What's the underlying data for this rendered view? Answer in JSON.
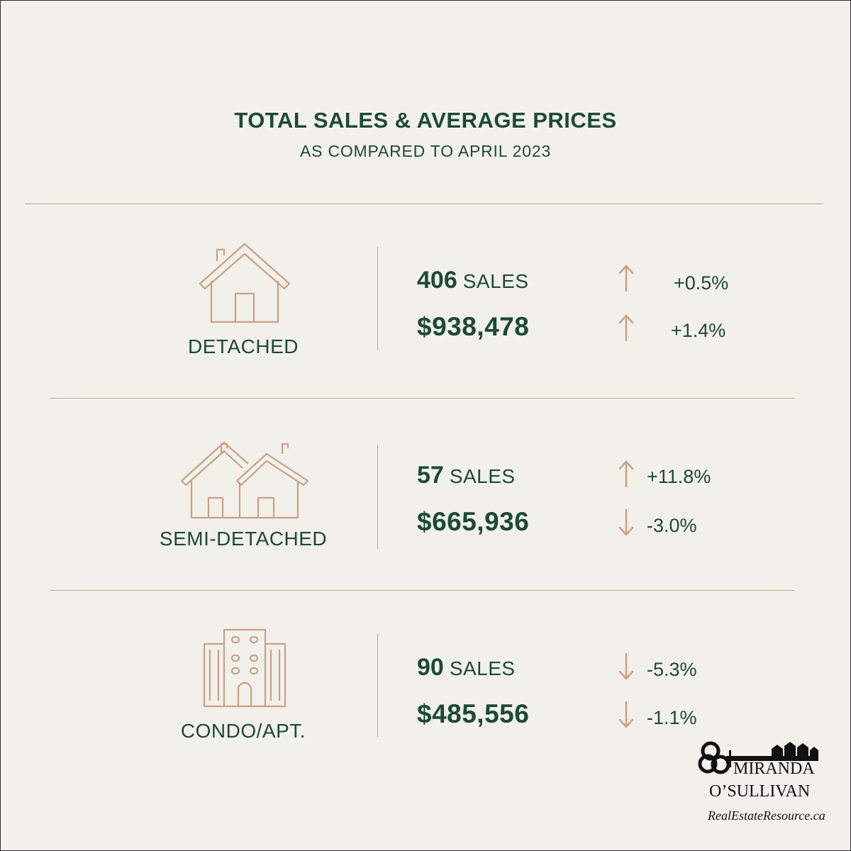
{
  "header": {
    "title": "TOTAL SALES & AVERAGE PRICES",
    "subtitle": "AS COMPARED TO APRIL 2023"
  },
  "colors": {
    "accent_green": "#1c4a34",
    "accent_tan": "#c9a183",
    "background": "#f2f0eb"
  },
  "categories": [
    {
      "label": "DETACHED",
      "icon": "house-icon",
      "sales_count": "406",
      "sales_unit": "SALES",
      "sales_change": "+0.5%",
      "sales_direction": "up",
      "avg_price": "$938,478",
      "price_change": "+1.4%",
      "price_direction": "up"
    },
    {
      "label": "SEMI-DETACHED",
      "icon": "semi-detached-houses-icon",
      "sales_count": "57",
      "sales_unit": "SALES",
      "sales_change": "+11.8%",
      "sales_direction": "up",
      "avg_price": "$665,936",
      "price_change": "-3.0%",
      "price_direction": "down"
    },
    {
      "label": "CONDO/APT.",
      "icon": "apartment-building-icon",
      "sales_count": "90",
      "sales_unit": "SALES",
      "sales_change": "-5.3%",
      "sales_direction": "down",
      "avg_price": "$485,556",
      "price_change": "-1.1%",
      "price_direction": "down"
    }
  ],
  "logo": {
    "name_line1": "MIRANDA",
    "name_line2": "O’SULLIVAN",
    "website": "RealEstateResource.ca",
    "icon": "key-with-houses-logo-icon"
  }
}
